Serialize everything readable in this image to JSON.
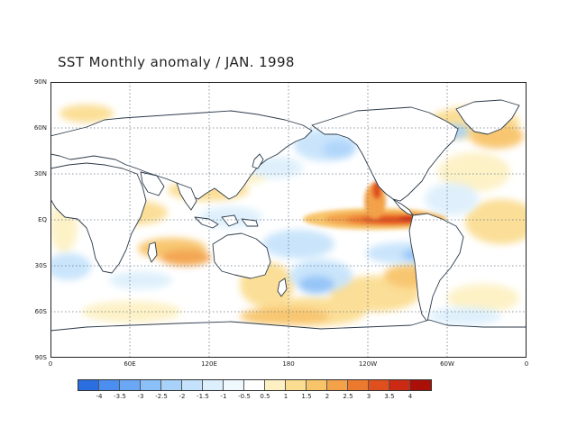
{
  "title": "SST Monthly anomaly / JAN. 1998",
  "lat_labels": [
    "90N",
    "60N",
    "30N",
    "EQ",
    "30S",
    "60S",
    "90S"
  ],
  "lon_labels": [
    "0",
    "60E",
    "120E",
    "180",
    "120W",
    "60W",
    "0"
  ],
  "colorbar": {
    "labels": [
      "-4",
      "-3.5",
      "-3",
      "-2.5",
      "-2",
      "-1.5",
      "-1",
      "-0.5",
      "0.5",
      "1",
      "1.5",
      "2",
      "2.5",
      "3",
      "3.5",
      "4"
    ],
    "colors": [
      "#2b6ee0",
      "#4a8ff0",
      "#6aa8f5",
      "#8bbff7",
      "#a8d2fa",
      "#c4e2fb",
      "#dceffc",
      "#eef8fd",
      "#ffffff",
      "#fdf1c4",
      "#fbdd92",
      "#f8c46a",
      "#f3a24a",
      "#ec7a2e",
      "#e0501e",
      "#cc2a12",
      "#aa1008"
    ]
  },
  "legend_colors": {
    "coast": "#2b3a4a",
    "grid": "#6a7a8a"
  }
}
